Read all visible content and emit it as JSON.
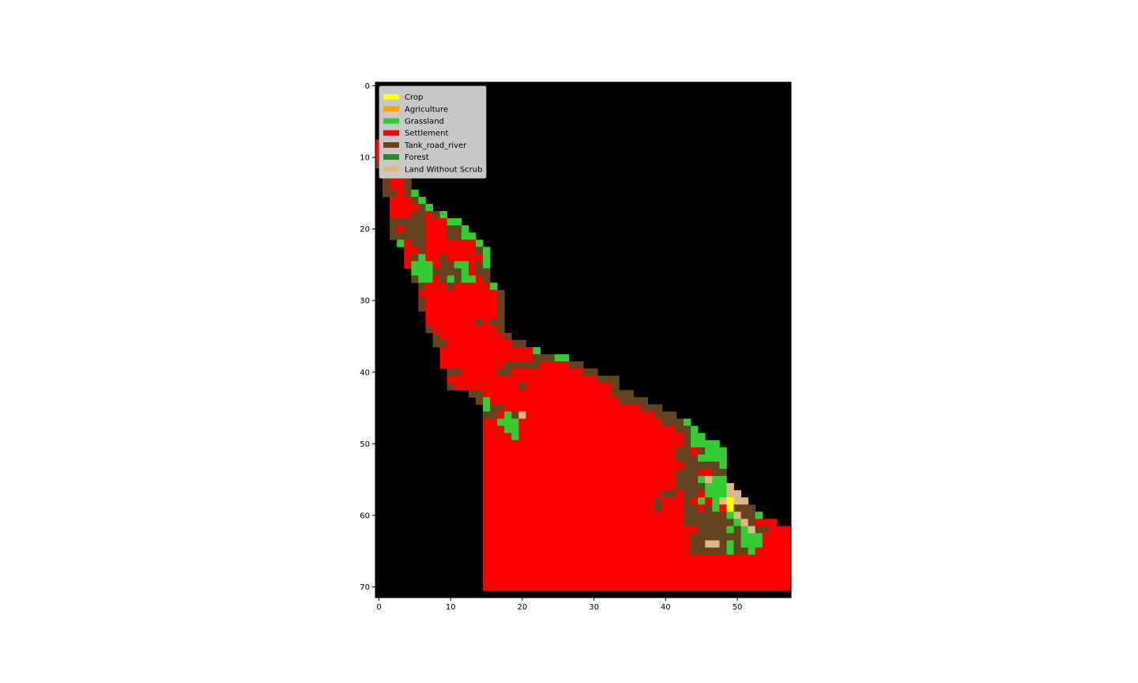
{
  "chart_data": {
    "type": "heatmap",
    "title": "",
    "xlabel": "",
    "ylabel": "",
    "xlim": [
      -0.5,
      57.5
    ],
    "ylim": [
      71.5,
      -0.5
    ],
    "x_ticks": [
      0,
      10,
      20,
      30,
      40,
      50
    ],
    "y_ticks": [
      0,
      10,
      20,
      30,
      40,
      50,
      60,
      70
    ],
    "grid": false,
    "background": "#000000",
    "legend_position": "upper-left",
    "legend": [
      {
        "name": "Crop",
        "color": "#ffff00"
      },
      {
        "name": "Agriculture",
        "color": "#ffa500"
      },
      {
        "name": "Grassland",
        "color": "#32cd32"
      },
      {
        "name": "Settlement",
        "color": "#ff0000"
      },
      {
        "name": "Tank_road_river",
        "color": "#654321"
      },
      {
        "name": "Forest",
        "color": "#228b22"
      },
      {
        "name": "Land Without Scrub",
        "color": "#deb887"
      }
    ],
    "codes": {
      ".": "background",
      "Y": "Crop",
      "G": "Grassland",
      "R": "Settlement",
      "B": "Tank_road_river",
      "T": "Land Without Scrub"
    },
    "grid_rows": [
      "..........................................................",
      "..........................................................",
      "..........................................................",
      "..........................................................",
      "..........................................................",
      "..........................................................",
      "..........................................................",
      "..........................................................",
      "RRBB......................................................",
      "RRRB......................................................",
      "RRRRB.....................................................",
      "BBRRB.....................................................",
      ".BBRB.....................................................",
      ".BRRB.....................................................",
      ".BRRB.....................................................",
      ".BBRBG....................................................",
      "..RRRBG...................................................",
      "..RRRRBG..................................................",
      "..RRRBBRBG................................................",
      "..BBBBBRRRGG..............................................",
      "..BRBBBRRRBBG.............................................",
      "..BBBBBRRRBBGG............................................",
      "...GRBBRRRRRRRG...........................................",
      "....RRBRRRRRRRBG..........................................",
      "....RBGRRBRRRRRG..........................................",
      "....RGGGRBBGGRBG..........................................",
      ".....GGGBBBBGRBB..........................................",
      ".....BGGRBGBGGRB..........................................",
      "......BRRRBRRRRRG.........................................",
      "......RRRRRRRRRRRB........................................",
      "......BRRRRRRRRRRB........................................",
      "......BRRRRRRRRRRB........................................",
      ".......RRRRRRRRRRB........................................",
      ".......RRRRRRRBRBB........................................",
      ".......BRRRRRRRRRB........................................",
      "........BRRRRRRRRRB.......................................",
      "........BBRRRRRRRRRBB.....................................",
      ".........RRRRRRRRRRRRRG...................................",
      ".........RRRRRRRRRRRRRBBBGG...............................",
      ".........RRRRRRRRRBBBBBRRRRBB.............................",
      "..........BBRRRRRBBRRRRRRRRRRBB...........................",
      "..........RRRRRRRRRRRRRRRRRRRRRBBB........................",
      "..........BRRRRRRRRRBRRRRRRRRRRRRB........................",
      ".............BBRRRRRRRRRRRRRRRRRRBBB......................",
      "..............BGRRRRRRRRRRRRRRRRRRBBBB....................",
      "...............GBBRRRRRRRRRRRRRRRRRRRBBB..................",
      "...............BBRGBTRRRRRRRRRRRRRRRRRRBBB................",
      "...............RRGGGRRRRRRRRRRRRRRRRRRRRBBBG..............",
      "...............RRRGGRRRRRRRRRRRRRRRRRRRRRRBBG.............",
      "...............RRRRGRRRRRRRRRRRRRRRRRRRRRRRBGG............",
      "...............RRRRRRRRRRRRRRRRRRRRRRRRRRRRBGGGG..........",
      "...............RRRRRRRRRRRRRRRRRRRRRRRRRRRBBRBGGG.........",
      "...............RRRRRRRRRRRRRRRRRRRRRRRRRRRBBBGGGG.........",
      "...............RRRRRRRRRRRRRRRRRRRRRRRRRRRRBBBBBG.........",
      "...............RRRRRRRRRRRRRRRRRRRRRRRRRRRBBBRRBB.........",
      "...............RRRRRRRRRRRRRRRRRRRRRRRRRRRBBBGTGG.........",
      "...............RRRRRRRRRRRRRRRRRRRRRRRRRRRBBBBGGGT........",
      "...............RRRRRRRRRRRRRRRRRRRRRRRRRBBRBBRGGGTT.......",
      "...............RRRRRRRRRRRRRRRRRRRRRRRRBRRRBRGRGTYTT......",
      "...............RRRRRRRRRRRRRRRRRRRRRRRRBRRRBBRBGRYBBB.....",
      "...............RRRRRRRRRRRRRRRRRRRRRRRRRRRRBBBBBBGTBBG....",
      "...............RRRRRRRRRRRRRRRRRRRRRRRRRRRRBBBBBBBGTBRRR..",
      "...............RRRRRRRRRRRRRRRRRRRRRRRRRRRRRRBBBBGBGTBBRRR",
      "...............RRRRRRRRRRRRRRRRRRRRRRRRRRRRRBBBBBBBGGGRRRR",
      "...............RRRRRRRRRRRRRRRRRRRRRRRRRRRRRBBTTBGBGGGRRRR",
      "...............RRRRRRRRRRRRRRRRRRRRRRRRRRRRRBBBBBGBBGRRRRR",
      "...............RRRRRRRRRRRRRRRRRRRRRRRRRRRRRRRRRRRRRRRRRRR",
      "...............RRRRRRRRRRRRRRRRRRRRRRRRRRRRRRRRRRRRRRRRRRR",
      "...............RRRRRRRRRRRRRRRRRRRRRRRRRRRRRRRRRRRRRRRRRRR",
      "...............RRRRRRRRRRRRRRRRRRRRRRRRRRRRRRRRRRRRRRRRRRR",
      "...............RRRRRRRRRRRRRRRRRRRRRRRRRRRRRRRRRRRRRRRRRRR",
      "..........................................................",
      ".........................................................."
    ]
  }
}
